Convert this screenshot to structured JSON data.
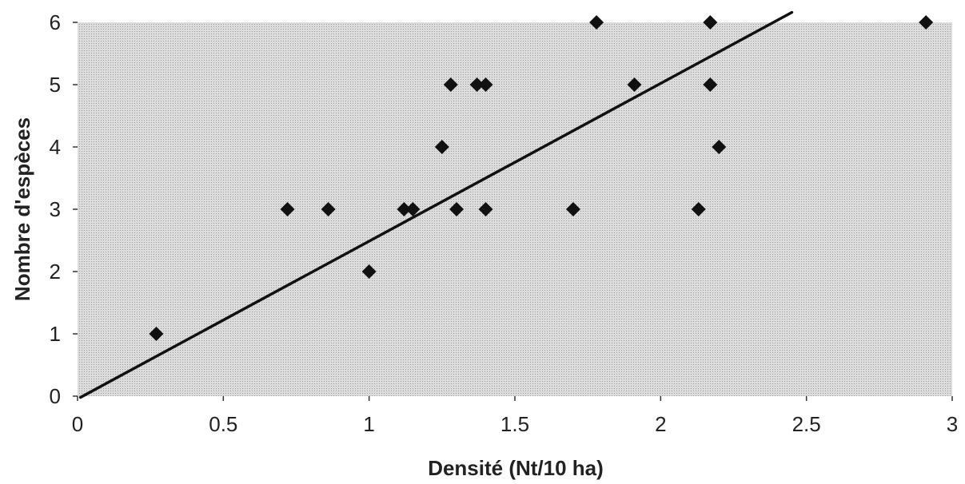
{
  "chart_data": {
    "type": "scatter",
    "xlabel": "Densité (Nt/10 ha)",
    "ylabel": "Nombre d'espèces",
    "xlim": [
      0,
      3
    ],
    "ylim": [
      0,
      6
    ],
    "x_ticks": [
      0,
      0.5,
      1,
      1.5,
      2,
      2.5,
      3
    ],
    "x_tick_labels": [
      "0",
      "0.5",
      "1",
      "1.5",
      "2",
      "2.5",
      "3"
    ],
    "y_ticks": [
      0,
      1,
      2,
      3,
      4,
      5,
      6
    ],
    "y_tick_labels": [
      "0",
      "1",
      "2",
      "3",
      "4",
      "5",
      "6"
    ],
    "grid": false,
    "plot_background": "#d4d4d4",
    "marker_color": "#111111",
    "marker_shape": "diamond",
    "points": [
      {
        "x": 0.27,
        "y": 1
      },
      {
        "x": 0.72,
        "y": 3
      },
      {
        "x": 0.86,
        "y": 3
      },
      {
        "x": 1.0,
        "y": 2
      },
      {
        "x": 1.12,
        "y": 3
      },
      {
        "x": 1.15,
        "y": 3
      },
      {
        "x": 1.25,
        "y": 4
      },
      {
        "x": 1.28,
        "y": 5
      },
      {
        "x": 1.3,
        "y": 3
      },
      {
        "x": 1.37,
        "y": 5
      },
      {
        "x": 1.4,
        "y": 5
      },
      {
        "x": 1.4,
        "y": 3
      },
      {
        "x": 1.7,
        "y": 3
      },
      {
        "x": 1.78,
        "y": 6
      },
      {
        "x": 1.91,
        "y": 5
      },
      {
        "x": 2.13,
        "y": 3
      },
      {
        "x": 2.17,
        "y": 6
      },
      {
        "x": 2.17,
        "y": 5
      },
      {
        "x": 2.2,
        "y": 4
      },
      {
        "x": 2.91,
        "y": 6
      }
    ],
    "trendline": {
      "type": "linear",
      "color": "#111111",
      "points": [
        {
          "x": 0.01,
          "y": -0.02
        },
        {
          "x": 2.45,
          "y": 6.16
        }
      ]
    }
  }
}
